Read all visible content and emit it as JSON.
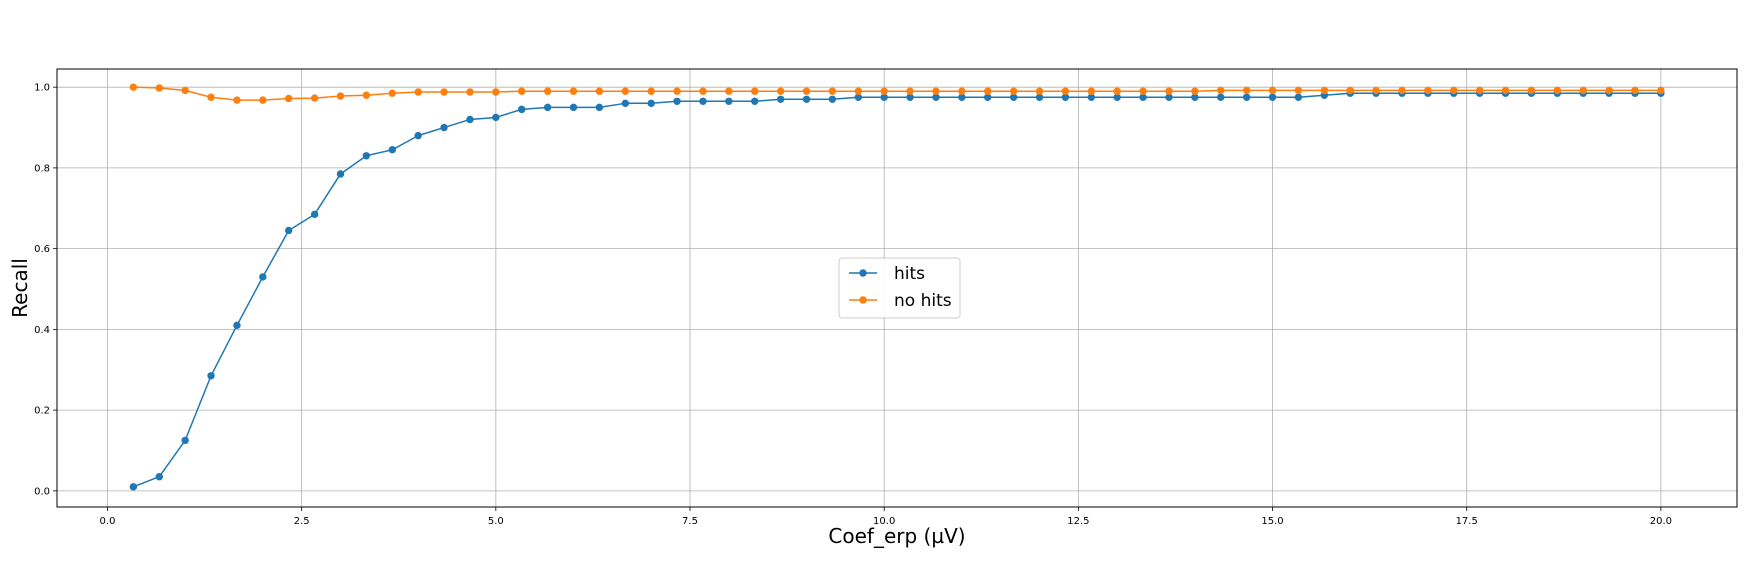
{
  "chart_data": {
    "type": "line",
    "title": "",
    "xlabel": "Coef_erp (µV)",
    "ylabel": "Recall",
    "xlim": [
      -0.65,
      20.98
    ],
    "ylim": [
      -0.04,
      1.045
    ],
    "xticks": [
      0.0,
      2.5,
      5.0,
      7.5,
      10.0,
      12.5,
      15.0,
      17.5,
      20.0
    ],
    "xtick_labels": [
      "0.0",
      "2.5",
      "5.0",
      "7.5",
      "10.0",
      "12.5",
      "15.0",
      "17.5",
      "20.0"
    ],
    "yticks": [
      0.0,
      0.2,
      0.4,
      0.6,
      0.8,
      1.0
    ],
    "ytick_labels": [
      "0.0",
      "0.2",
      "0.4",
      "0.6",
      "0.8",
      "1.0"
    ],
    "grid": true,
    "legend_position": "center",
    "markers": "circle",
    "x": [
      0.333,
      0.667,
      1.0,
      1.333,
      1.667,
      2.0,
      2.333,
      2.667,
      3.0,
      3.333,
      3.667,
      4.0,
      4.333,
      4.667,
      5.0,
      5.333,
      5.667,
      6.0,
      6.333,
      6.667,
      7.0,
      7.333,
      7.667,
      8.0,
      8.333,
      8.667,
      9.0,
      9.333,
      9.667,
      10.0,
      10.333,
      10.667,
      11.0,
      11.333,
      11.667,
      12.0,
      12.333,
      12.667,
      13.0,
      13.333,
      13.667,
      14.0,
      14.333,
      14.667,
      15.0,
      15.333,
      15.667,
      16.0,
      16.333,
      16.667,
      17.0,
      17.333,
      17.667,
      18.0,
      18.333,
      18.667,
      19.0,
      19.333,
      19.667,
      20.0
    ],
    "series": [
      {
        "name": "hits",
        "color": "#1f77b4",
        "values": [
          0.01,
          0.035,
          0.125,
          0.285,
          0.41,
          0.53,
          0.645,
          0.685,
          0.785,
          0.83,
          0.845,
          0.88,
          0.9,
          0.92,
          0.925,
          0.945,
          0.95,
          0.95,
          0.95,
          0.96,
          0.96,
          0.965,
          0.965,
          0.965,
          0.965,
          0.97,
          0.97,
          0.97,
          0.975,
          0.975,
          0.975,
          0.975,
          0.975,
          0.975,
          0.975,
          0.975,
          0.975,
          0.975,
          0.975,
          0.975,
          0.975,
          0.975,
          0.975,
          0.975,
          0.975,
          0.975,
          0.98,
          0.985,
          0.985,
          0.985,
          0.985,
          0.985,
          0.985,
          0.985,
          0.985,
          0.985,
          0.985,
          0.985,
          0.985,
          0.985
        ]
      },
      {
        "name": "no hits",
        "color": "#ff7f0e",
        "values": [
          1.0,
          0.998,
          0.992,
          0.975,
          0.968,
          0.968,
          0.972,
          0.973,
          0.978,
          0.98,
          0.985,
          0.988,
          0.988,
          0.988,
          0.988,
          0.99,
          0.99,
          0.99,
          0.99,
          0.99,
          0.99,
          0.99,
          0.99,
          0.99,
          0.99,
          0.99,
          0.99,
          0.99,
          0.99,
          0.99,
          0.99,
          0.99,
          0.99,
          0.99,
          0.99,
          0.99,
          0.99,
          0.99,
          0.99,
          0.99,
          0.99,
          0.99,
          0.992,
          0.992,
          0.992,
          0.992,
          0.992,
          0.992,
          0.992,
          0.992,
          0.992,
          0.992,
          0.992,
          0.992,
          0.992,
          0.992,
          0.992,
          0.992,
          0.992,
          0.992
        ]
      }
    ]
  }
}
